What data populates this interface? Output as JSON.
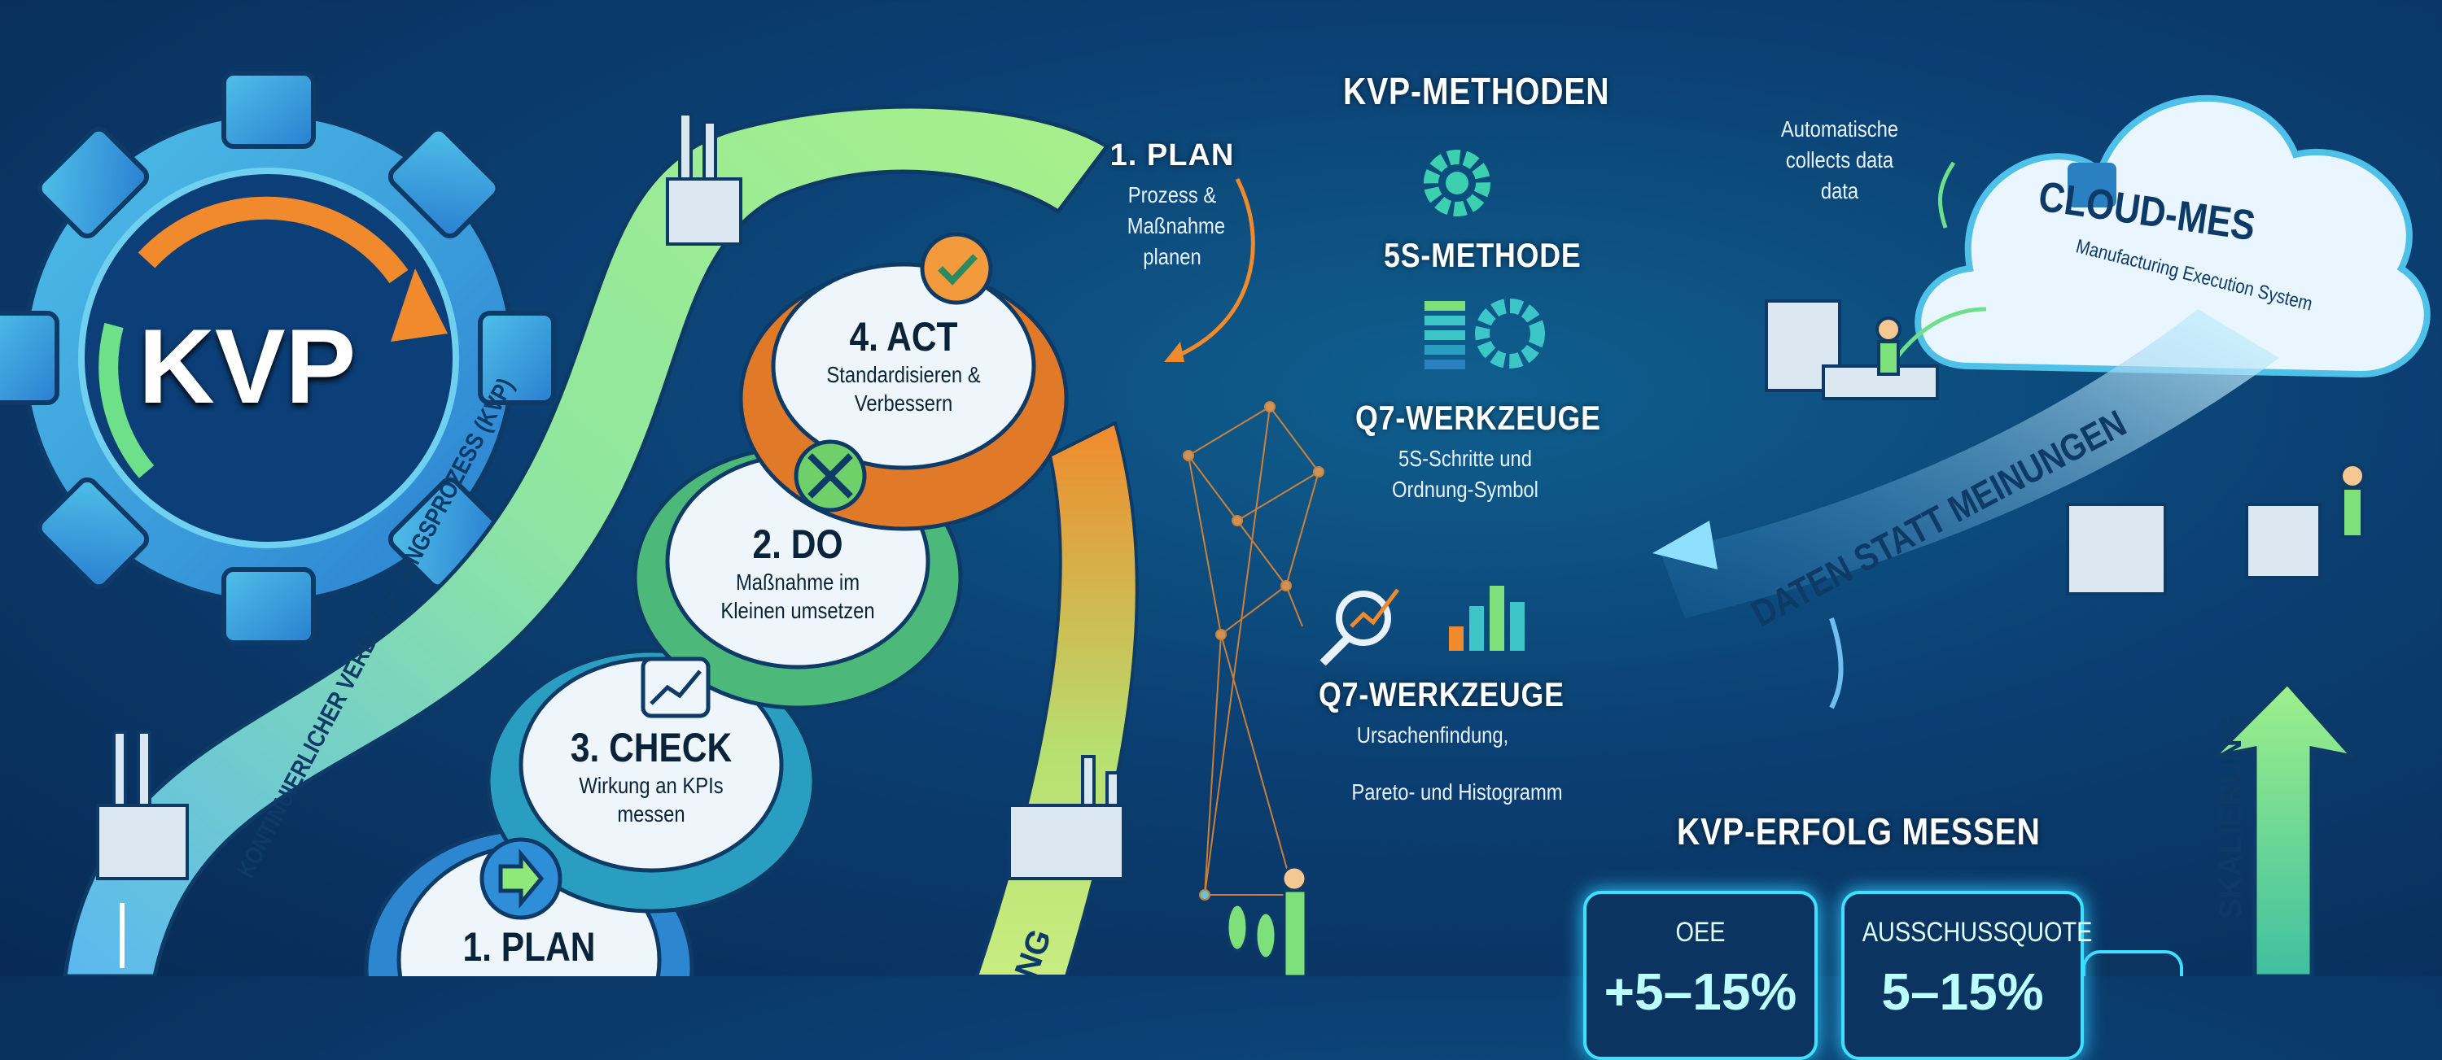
{
  "gear": {
    "label": "KVP"
  },
  "ribbon": {
    "label": "KONTINUIERLICHER VERBESSERUNGSPROZESS (KVP)",
    "lower_label": "NG"
  },
  "cycle": [
    {
      "title": "4. ACT",
      "desc": "Standardisieren & Verbessern",
      "icon": "check-icon",
      "color": "#f08a2c"
    },
    {
      "title": "2. DO",
      "desc": "Maßnahme im Kleinen umsetzen",
      "icon": "wrench-icon",
      "color": "#6fd06a"
    },
    {
      "title": "3. CHECK",
      "desc": "Wirkung an KPIs messen",
      "icon": "chart-icon",
      "color": "#3cc6c8"
    },
    {
      "title": "1. PLAN",
      "desc": "",
      "icon": "arrow-right-icon",
      "color": "#3aa0e0"
    }
  ],
  "plan_callout": {
    "title": "1. PLAN",
    "desc": "Prozess & Maßnahme planen"
  },
  "methods": {
    "title": "KVP-METHODEN",
    "items": [
      {
        "title": "5S-METHODE",
        "desc": ""
      },
      {
        "title": "Q7-WERKZEUGE",
        "desc": "5S-Schritte und Ordnung-Symbol"
      },
      {
        "title": "Q7-WERKZEUGE",
        "desc": "Ursachenfindung,",
        "desc2": "Pareto- und Histogramm"
      }
    ]
  },
  "cloud": {
    "title": "CLOUD-MES",
    "subtitle": "Manufacturing Execution System",
    "note": "Automatische collects data data"
  },
  "stream": {
    "label": "DATEN STATT MEINUNGEN"
  },
  "success": {
    "title": "KVP-ERFOLG MESSEN",
    "kpis": [
      {
        "label": "OEE",
        "value": "+5–15%"
      },
      {
        "label": "AUSSCHUSSQUOTE",
        "value": "5–15%"
      }
    ]
  },
  "scaling": {
    "label": "SKALIERUNG"
  },
  "colors": {
    "background": "#0b3f72",
    "green": "#7ee07a",
    "orange": "#f08a2c",
    "cyan": "#3fe0ff"
  }
}
